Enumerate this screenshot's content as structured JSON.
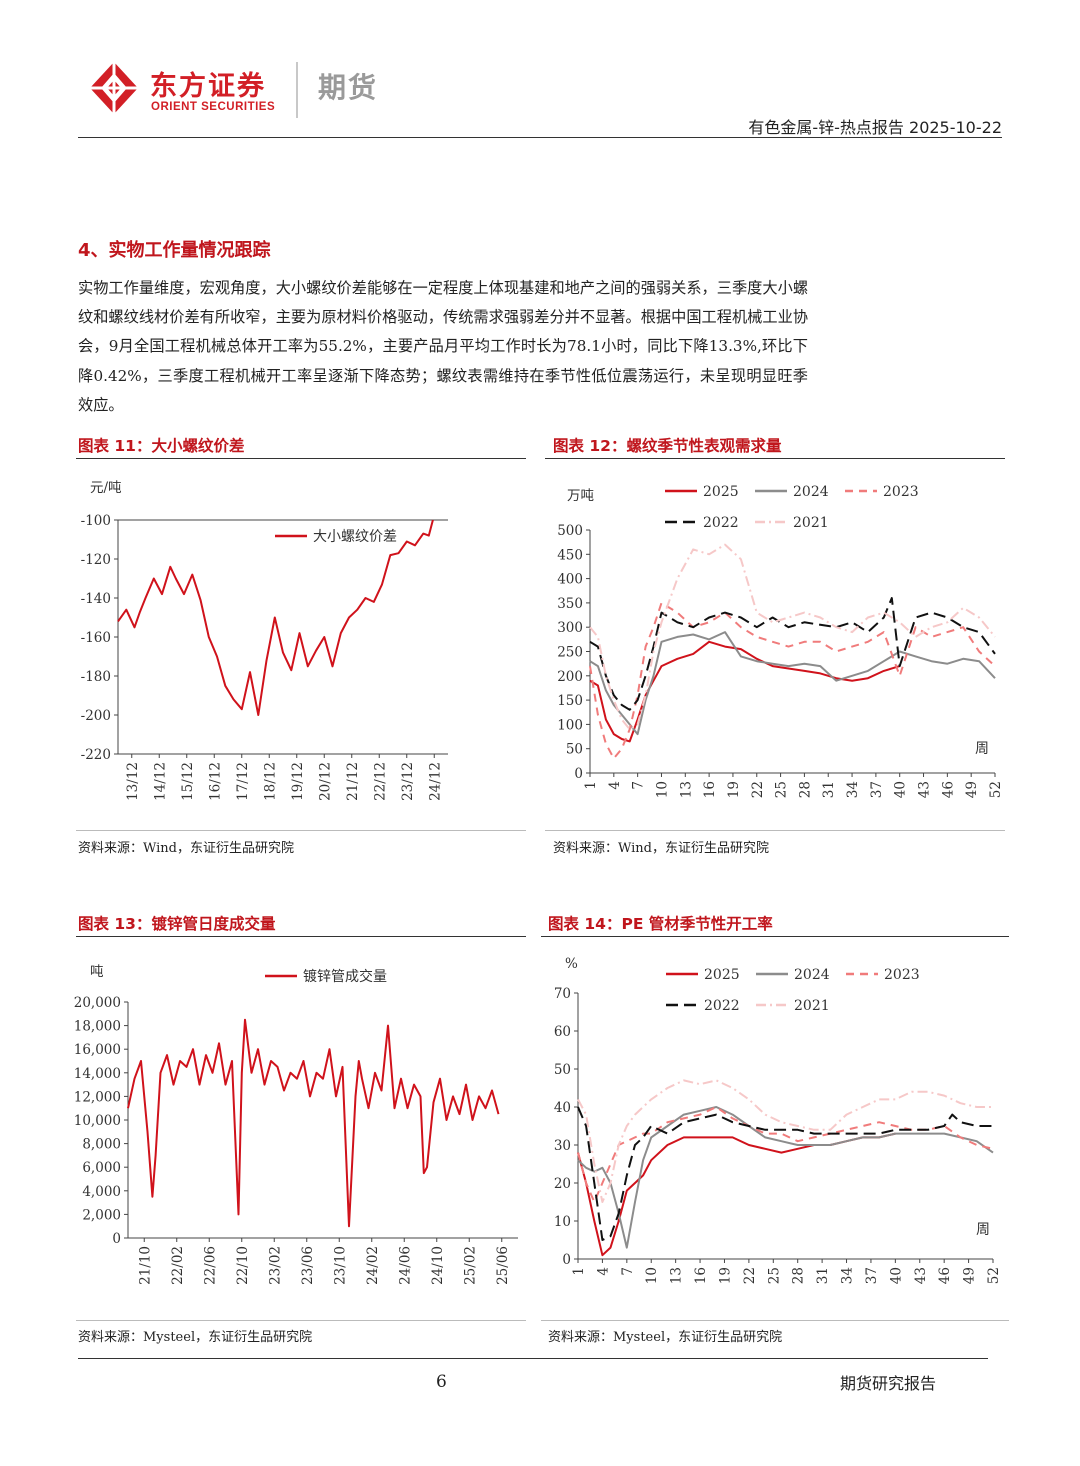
{
  "header": {
    "logo_cn": "东方证券",
    "logo_en": "ORIENT SECURITIES",
    "logo_sub": "期货",
    "report_label": "有色金属-锌-热点报告 2025-10-22"
  },
  "section": {
    "title": "4、实物工作量情况跟踪",
    "paragraph": "实物工作量维度，宏观角度，大小螺纹价差能够在一定程度上体现基建和地产之间的强弱关系，三季度大小螺纹和螺纹线材价差有所收窄，主要为原材料价格驱动，传统需求强弱差分并不显著。根据中国工程机械工业协会，9月全国工程机械总体开工率为55.2%，主要产品月平均工作时长为78.1小时，同比下降13.3%,环比下降0.42%，三季度工程机械开工率呈逐渐下降态势；螺纹表需维持在季节性低位震荡运行，未呈现明显旺季效应。"
  },
  "figures": {
    "fig11": {
      "title": "图表 11：大小螺纹价差",
      "source": "资料来源：Wind，东证衍生品研究院"
    },
    "fig12": {
      "title": "图表 12：螺纹季节性表观需求量",
      "source": "资料来源：Wind，东证衍生品研究院"
    },
    "fig13": {
      "title": "图表 13：镀锌管日度成交量",
      "source": "资料来源：Mysteel，东证衍生品研究院"
    },
    "fig14": {
      "title": "图表 14：PE 管材季节性开工率",
      "source": "资料来源：Mysteel，东证衍生品研究院"
    }
  },
  "colors": {
    "c2025": "#d0121b",
    "c2024": "#8c8c8c",
    "c2023": "#f07b7b",
    "c2022": "#111111",
    "c2021": "#f6c8c8"
  },
  "chart_data": [
    {
      "id": "fig11",
      "type": "line",
      "title": "",
      "ylabel": "元/吨",
      "ylim": [
        -220,
        -100
      ],
      "yticks": [
        -100,
        -120,
        -140,
        -160,
        -180,
        -200,
        -220
      ],
      "categories": [
        "13/12",
        "14/12",
        "15/12",
        "16/12",
        "17/12",
        "18/12",
        "19/12",
        "20/12",
        "21/12",
        "22/12",
        "23/12",
        "24/12"
      ],
      "legend": "top-right",
      "series": [
        {
          "name": "大小螺纹价差",
          "color": "#d0121b",
          "x": [
            0,
            0.3,
            0.6,
            0.8,
            1.0,
            1.3,
            1.6,
            1.9,
            2.1,
            2.4,
            2.7,
            3.0,
            3.3,
            3.6,
            3.9,
            4.2,
            4.5,
            4.8,
            5.1,
            5.4,
            5.7,
            6.0,
            6.3,
            6.6,
            6.9,
            7.2,
            7.5,
            7.8,
            8.1,
            8.4,
            8.7,
            9.0,
            9.3,
            9.6,
            9.9,
            10.2,
            10.5,
            10.8,
            11.1,
            11.3,
            11.45
          ],
          "y": [
            -152,
            -146,
            -155,
            -147,
            -140,
            -130,
            -138,
            -124,
            -130,
            -138,
            -128,
            -141,
            -160,
            -170,
            -185,
            -192,
            -197,
            -178,
            -200,
            -172,
            -150,
            -168,
            -177,
            -158,
            -175,
            -167,
            -160,
            -175,
            -158,
            -150,
            -146,
            -140,
            -142,
            -133,
            -118,
            -117,
            -111,
            -113,
            -107,
            -108,
            -100
          ]
        }
      ]
    },
    {
      "id": "fig12",
      "type": "line",
      "title": "",
      "ylabel": "万吨",
      "xlabel": "周",
      "ylim": [
        0,
        500
      ],
      "yticks": [
        0,
        50,
        100,
        150,
        200,
        250,
        300,
        350,
        400,
        450,
        500
      ],
      "categories": [
        "1",
        "4",
        "7",
        "10",
        "13",
        "16",
        "19",
        "22",
        "25",
        "28",
        "31",
        "34",
        "37",
        "40",
        "43",
        "46",
        "49",
        "52"
      ],
      "legend": "top",
      "series": [
        {
          "name": "2025",
          "color": "#d0121b",
          "dash": "",
          "x": [
            1,
            2,
            3,
            4,
            5,
            6,
            7,
            8,
            9,
            10,
            12,
            14,
            16,
            18,
            20,
            22,
            24,
            26,
            28,
            30,
            32,
            34,
            36,
            38,
            40
          ],
          "y": [
            190,
            180,
            110,
            80,
            70,
            65,
            110,
            160,
            190,
            220,
            235,
            245,
            270,
            260,
            255,
            235,
            220,
            215,
            210,
            205,
            195,
            190,
            195,
            210,
            220
          ]
        },
        {
          "name": "2024",
          "color": "#8c8c8c",
          "dash": "",
          "x": [
            1,
            2,
            3,
            4,
            5,
            6,
            7,
            8,
            9,
            10,
            12,
            14,
            16,
            18,
            20,
            22,
            24,
            26,
            28,
            30,
            32,
            34,
            36,
            38,
            40,
            42,
            44,
            46,
            48,
            50,
            52
          ],
          "y": [
            230,
            220,
            170,
            140,
            120,
            100,
            80,
            150,
            200,
            270,
            280,
            285,
            275,
            290,
            240,
            230,
            225,
            220,
            225,
            220,
            190,
            200,
            210,
            230,
            250,
            240,
            230,
            225,
            235,
            230,
            195
          ]
        },
        {
          "name": "2023",
          "color": "#f07b7b",
          "dash": "8 6",
          "x": [
            1,
            2,
            3,
            4,
            5,
            6,
            7,
            8,
            9,
            10,
            12,
            14,
            16,
            18,
            20,
            22,
            24,
            26,
            28,
            30,
            32,
            34,
            36,
            38,
            40,
            42,
            44,
            46,
            48,
            50,
            52
          ],
          "y": [
            220,
            120,
            60,
            30,
            50,
            90,
            160,
            260,
            300,
            350,
            330,
            300,
            310,
            330,
            300,
            280,
            270,
            260,
            270,
            270,
            250,
            260,
            270,
            290,
            200,
            300,
            280,
            290,
            300,
            250,
            220
          ]
        },
        {
          "name": "2022",
          "color": "#111111",
          "dash": "12 6",
          "x": [
            1,
            2,
            3,
            4,
            5,
            6,
            7,
            8,
            9,
            10,
            12,
            14,
            16,
            18,
            20,
            22,
            24,
            26,
            28,
            30,
            32,
            34,
            36,
            38,
            39,
            40,
            42,
            44,
            46,
            48,
            50,
            52
          ],
          "y": [
            270,
            260,
            200,
            160,
            140,
            130,
            150,
            200,
            260,
            330,
            310,
            300,
            320,
            330,
            320,
            300,
            320,
            300,
            310,
            305,
            300,
            310,
            290,
            320,
            360,
            220,
            320,
            330,
            320,
            300,
            290,
            245
          ]
        },
        {
          "name": "2021",
          "color": "#f6c8c8",
          "dash": "10 4 2 4",
          "x": [
            1,
            2,
            3,
            4,
            5,
            6,
            7,
            8,
            9,
            10,
            12,
            14,
            16,
            18,
            20,
            22,
            24,
            26,
            28,
            30,
            32,
            34,
            36,
            38,
            40,
            42,
            44,
            46,
            48,
            50,
            52
          ],
          "y": [
            300,
            280,
            200,
            150,
            110,
            90,
            100,
            160,
            250,
            310,
            400,
            460,
            450,
            470,
            440,
            330,
            310,
            320,
            330,
            320,
            300,
            290,
            320,
            330,
            310,
            280,
            300,
            310,
            340,
            320,
            280
          ]
        }
      ]
    },
    {
      "id": "fig13",
      "type": "line",
      "title": "",
      "ylabel": "吨",
      "ylim": [
        0,
        20000
      ],
      "yticks": [
        0,
        2000,
        4000,
        6000,
        8000,
        10000,
        12000,
        14000,
        16000,
        18000,
        20000
      ],
      "categories": [
        "21/10",
        "22/02",
        "22/06",
        "22/10",
        "23/02",
        "23/06",
        "23/10",
        "24/02",
        "24/06",
        "24/10",
        "25/02",
        "25/06"
      ],
      "legend": "top",
      "series": [
        {
          "name": "镀锌管成交量",
          "color": "#d0121b",
          "x": [
            0,
            0.2,
            0.4,
            0.6,
            0.75,
            0.85,
            1.0,
            1.2,
            1.4,
            1.6,
            1.8,
            2.0,
            2.2,
            2.4,
            2.6,
            2.8,
            3.0,
            3.2,
            3.4,
            3.5,
            3.6,
            3.8,
            4.0,
            4.2,
            4.4,
            4.6,
            4.8,
            5.0,
            5.2,
            5.4,
            5.6,
            5.8,
            6.0,
            6.2,
            6.4,
            6.6,
            6.8,
            7.0,
            7.1,
            7.2,
            7.4,
            7.6,
            7.8,
            8.0,
            8.2,
            8.4,
            8.6,
            8.8,
            9.0,
            9.1,
            9.2,
            9.4,
            9.6,
            9.8,
            10.0,
            10.2,
            10.4,
            10.6,
            10.8,
            11.0,
            11.2,
            11.4
          ],
          "y": [
            11000,
            13500,
            15000,
            9000,
            3500,
            7000,
            14000,
            15500,
            13000,
            15000,
            14500,
            16000,
            13000,
            15500,
            14000,
            16500,
            13000,
            15000,
            2000,
            14000,
            18500,
            14000,
            16000,
            13000,
            15000,
            14500,
            12500,
            14000,
            13500,
            15000,
            12000,
            14000,
            13500,
            16000,
            12000,
            14500,
            1000,
            12000,
            15000,
            13500,
            11000,
            14000,
            12500,
            18000,
            11000,
            13500,
            11000,
            13000,
            12000,
            5500,
            6000,
            11500,
            13500,
            10000,
            12000,
            10500,
            13000,
            10000,
            12000,
            11000,
            12500,
            10500
          ]
        }
      ]
    },
    {
      "id": "fig14",
      "type": "line",
      "title": "",
      "ylabel": "%",
      "xlabel": "周",
      "ylim": [
        0,
        70
      ],
      "yticks": [
        0,
        10,
        20,
        30,
        40,
        50,
        60,
        70
      ],
      "categories": [
        "1",
        "4",
        "7",
        "10",
        "13",
        "16",
        "19",
        "22",
        "25",
        "28",
        "31",
        "34",
        "37",
        "40",
        "43",
        "46",
        "49",
        "52"
      ],
      "legend": "top",
      "series": [
        {
          "name": "2025",
          "color": "#d0121b",
          "dash": "",
          "x": [
            1,
            2,
            3,
            4,
            5,
            6,
            7,
            8,
            9,
            10,
            12,
            14,
            16,
            18,
            20,
            22,
            24,
            26,
            28,
            30,
            32,
            34,
            36,
            38,
            40
          ],
          "y": [
            28,
            20,
            10,
            1,
            3,
            10,
            18,
            20,
            22,
            26,
            30,
            32,
            32,
            32,
            32,
            30,
            29,
            28,
            29,
            30,
            30,
            31,
            32,
            32,
            33
          ]
        },
        {
          "name": "2024",
          "color": "#8c8c8c",
          "dash": "",
          "x": [
            1,
            2,
            3,
            4,
            5,
            6,
            7,
            8,
            9,
            10,
            12,
            14,
            16,
            18,
            20,
            22,
            24,
            26,
            28,
            30,
            32,
            34,
            36,
            38,
            40,
            42,
            44,
            46,
            48,
            50,
            52
          ],
          "y": [
            26,
            24,
            23,
            24,
            20,
            12,
            3,
            15,
            26,
            32,
            35,
            38,
            39,
            40,
            38,
            35,
            32,
            31,
            30,
            30,
            30,
            31,
            32,
            32,
            33,
            33,
            33,
            33,
            32,
            31,
            28
          ]
        },
        {
          "name": "2023",
          "color": "#f07b7b",
          "dash": "8 6",
          "x": [
            1,
            2,
            3,
            4,
            5,
            6,
            7,
            8,
            9,
            10,
            12,
            14,
            16,
            18,
            20,
            22,
            24,
            26,
            28,
            30,
            32,
            34,
            36,
            38,
            40,
            42,
            44,
            46,
            48,
            50,
            52
          ],
          "y": [
            28,
            20,
            15,
            20,
            25,
            30,
            31,
            32,
            33,
            33,
            36,
            37,
            38,
            40,
            37,
            35,
            33,
            33,
            31,
            32,
            33,
            34,
            35,
            36,
            35,
            34,
            34,
            35,
            32,
            30,
            29
          ]
        },
        {
          "name": "2022",
          "color": "#111111",
          "dash": "12 6",
          "x": [
            1,
            2,
            3,
            4,
            5,
            6,
            7,
            8,
            9,
            10,
            12,
            14,
            16,
            18,
            20,
            22,
            24,
            26,
            28,
            30,
            32,
            34,
            36,
            38,
            40,
            42,
            44,
            46,
            47,
            48,
            50,
            52
          ],
          "y": [
            40,
            35,
            20,
            5,
            6,
            12,
            22,
            30,
            32,
            35,
            33,
            36,
            37,
            38,
            36,
            35,
            34,
            34,
            34,
            33,
            33,
            33,
            33,
            33,
            34,
            34,
            34,
            35,
            38,
            36,
            35,
            35
          ]
        },
        {
          "name": "2021",
          "color": "#f6c8c8",
          "dash": "10 4 2 4",
          "x": [
            1,
            2,
            3,
            4,
            5,
            6,
            7,
            8,
            9,
            10,
            12,
            14,
            16,
            18,
            20,
            22,
            24,
            26,
            28,
            30,
            32,
            34,
            36,
            38,
            40,
            42,
            44,
            46,
            48,
            50,
            52
          ],
          "y": [
            42,
            38,
            25,
            15,
            20,
            30,
            35,
            38,
            40,
            42,
            45,
            47,
            46,
            47,
            45,
            42,
            38,
            36,
            35,
            34,
            34,
            38,
            40,
            42,
            42,
            44,
            44,
            43,
            41,
            40,
            40
          ]
        }
      ]
    }
  ],
  "footer": {
    "page_number": "6",
    "label": "期货研究报告"
  }
}
